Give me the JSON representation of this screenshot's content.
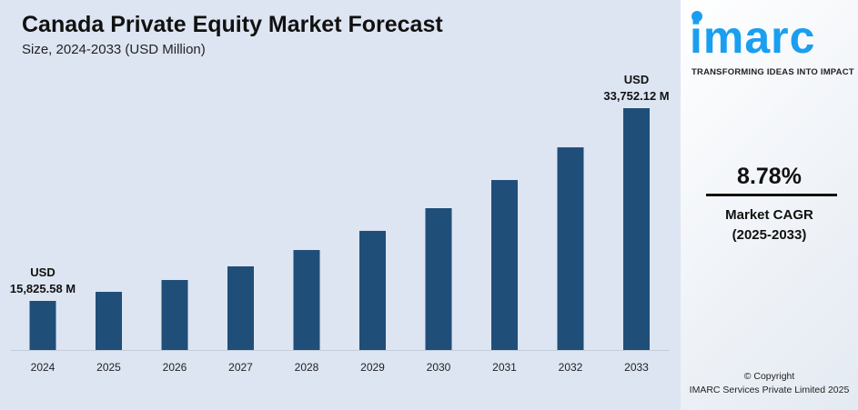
{
  "chart_data": {
    "type": "bar",
    "title": "Canada Private Equity Market Forecast",
    "subtitle": "Size, 2024-2033 (USD Million)",
    "categories": [
      "2024",
      "2025",
      "2026",
      "2027",
      "2028",
      "2029",
      "2030",
      "2031",
      "2032",
      "2033"
    ],
    "values": [
      15825.58,
      16670,
      17770,
      19040,
      20560,
      22340,
      24450,
      27070,
      30110,
      33752.12
    ],
    "ylim": [
      11260,
      36000
    ],
    "grid": false,
    "bar_color": "#1f4e79",
    "annotations": [
      {
        "index": 0,
        "line1": "USD",
        "line2": "15,825.58 M"
      },
      {
        "index": 9,
        "line1": "USD",
        "line2": "33,752.12 M"
      }
    ]
  },
  "brand": {
    "logo_text": "imarc",
    "tagline": "TRANSFORMING IDEAS INTO IMPACT",
    "color": "#1a9ff0"
  },
  "cagr": {
    "value": "8.78%",
    "label": "Market CAGR",
    "period": "(2025-2033)"
  },
  "copyright": {
    "line1": "© Copyright",
    "line2": "IMARC Services Private Limited 2025"
  }
}
